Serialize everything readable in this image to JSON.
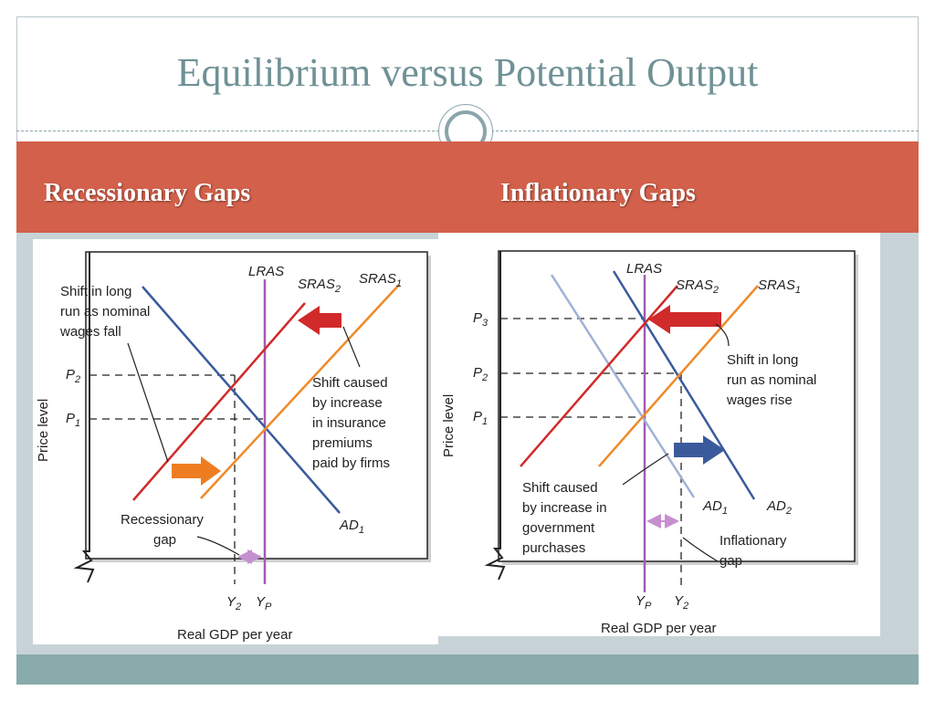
{
  "slide": {
    "title": "Equilibrium versus Potential Output",
    "colors": {
      "accent": "#d3604a",
      "title": "#6f9195",
      "footer": "#89abab",
      "background": "#c8d3d8"
    }
  },
  "headings": {
    "left": "Recessionary Gaps",
    "right": "Inflationary Gaps"
  },
  "recessionary": {
    "y_axis_label": "Price level",
    "x_axis_label": "Real GDP per year",
    "lras": "LRAS",
    "sras2_main": "SRAS",
    "sras2_sub": "2",
    "sras1_main": "SRAS",
    "sras1_sub": "1",
    "ad1_main": "AD",
    "ad1_sub": "1",
    "p2_main": "P",
    "p2_sub": "2",
    "p1_main": "P",
    "p1_sub": "1",
    "y2_main": "Y",
    "y2_sub": "2",
    "yp_main": "Y",
    "yp_sub": "P",
    "shift_long_run": [
      "Shift in long",
      "run as nominal",
      "wages fall"
    ],
    "shift_caused": [
      "Shift caused",
      "by increase",
      "in insurance",
      "premiums",
      "paid by firms"
    ],
    "gap": [
      "Recessionary",
      "gap"
    ]
  },
  "inflationary": {
    "y_axis_label": "Price level",
    "x_axis_label": "Real GDP per year",
    "lras": "LRAS",
    "sras2_main": "SRAS",
    "sras2_sub": "2",
    "sras1_main": "SRAS",
    "sras1_sub": "1",
    "ad1_main": "AD",
    "ad1_sub": "1",
    "ad2_main": "AD",
    "ad2_sub": "2",
    "p3_main": "P",
    "p3_sub": "3",
    "p2_main": "P",
    "p2_sub": "2",
    "p1_main": "P",
    "p1_sub": "1",
    "yp_main": "Y",
    "yp_sub": "P",
    "y2_main": "Y",
    "y2_sub": "2",
    "shift_long_run": [
      "Shift in long",
      "run as nominal",
      "wages rise"
    ],
    "shift_caused": [
      "Shift caused",
      "by increase in",
      "government",
      "purchases"
    ],
    "gap": [
      "Inflationary",
      "gap"
    ]
  }
}
